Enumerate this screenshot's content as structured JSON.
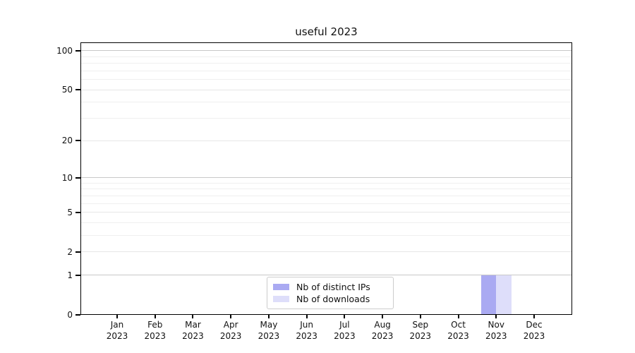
{
  "title": "useful 2023",
  "chart_data": {
    "type": "bar",
    "title": "useful 2023",
    "categories": [
      "Jan 2023",
      "Feb 2023",
      "Mar 2023",
      "Apr 2023",
      "May 2023",
      "Jun 2023",
      "Jul 2023",
      "Aug 2023",
      "Sep 2023",
      "Oct 2023",
      "Nov 2023",
      "Dec 2023"
    ],
    "series": [
      {
        "name": "Nb of distinct IPs",
        "color": "#aaaaf2",
        "values": [
          0,
          0,
          0,
          0,
          0,
          0,
          0,
          0,
          0,
          0,
          1,
          0
        ]
      },
      {
        "name": "Nb of downloads",
        "color": "#dedefa",
        "values": [
          0,
          0,
          0,
          0,
          0,
          0,
          0,
          0,
          0,
          0,
          1,
          0
        ]
      }
    ],
    "xlabel": "",
    "ylabel": "",
    "yscale": "log1p",
    "ylim": [
      0,
      117
    ],
    "y_major_ticks": [
      0,
      1,
      2,
      5,
      10,
      20,
      50,
      100
    ],
    "y_minor_gridlines": [
      3,
      4,
      6,
      7,
      8,
      9,
      30,
      40,
      60,
      70,
      80,
      90
    ],
    "grid": true,
    "legend_position": "lower center"
  },
  "colors": {
    "major_gridline": "#c8c8c8",
    "labeled_gridline": "#e6e6e6",
    "minor_gridline": "#efefef",
    "bar_ips": "#aaaaf2",
    "bar_downloads": "#dedefa",
    "legend_border": "#cccccc",
    "axis": "#000000"
  }
}
